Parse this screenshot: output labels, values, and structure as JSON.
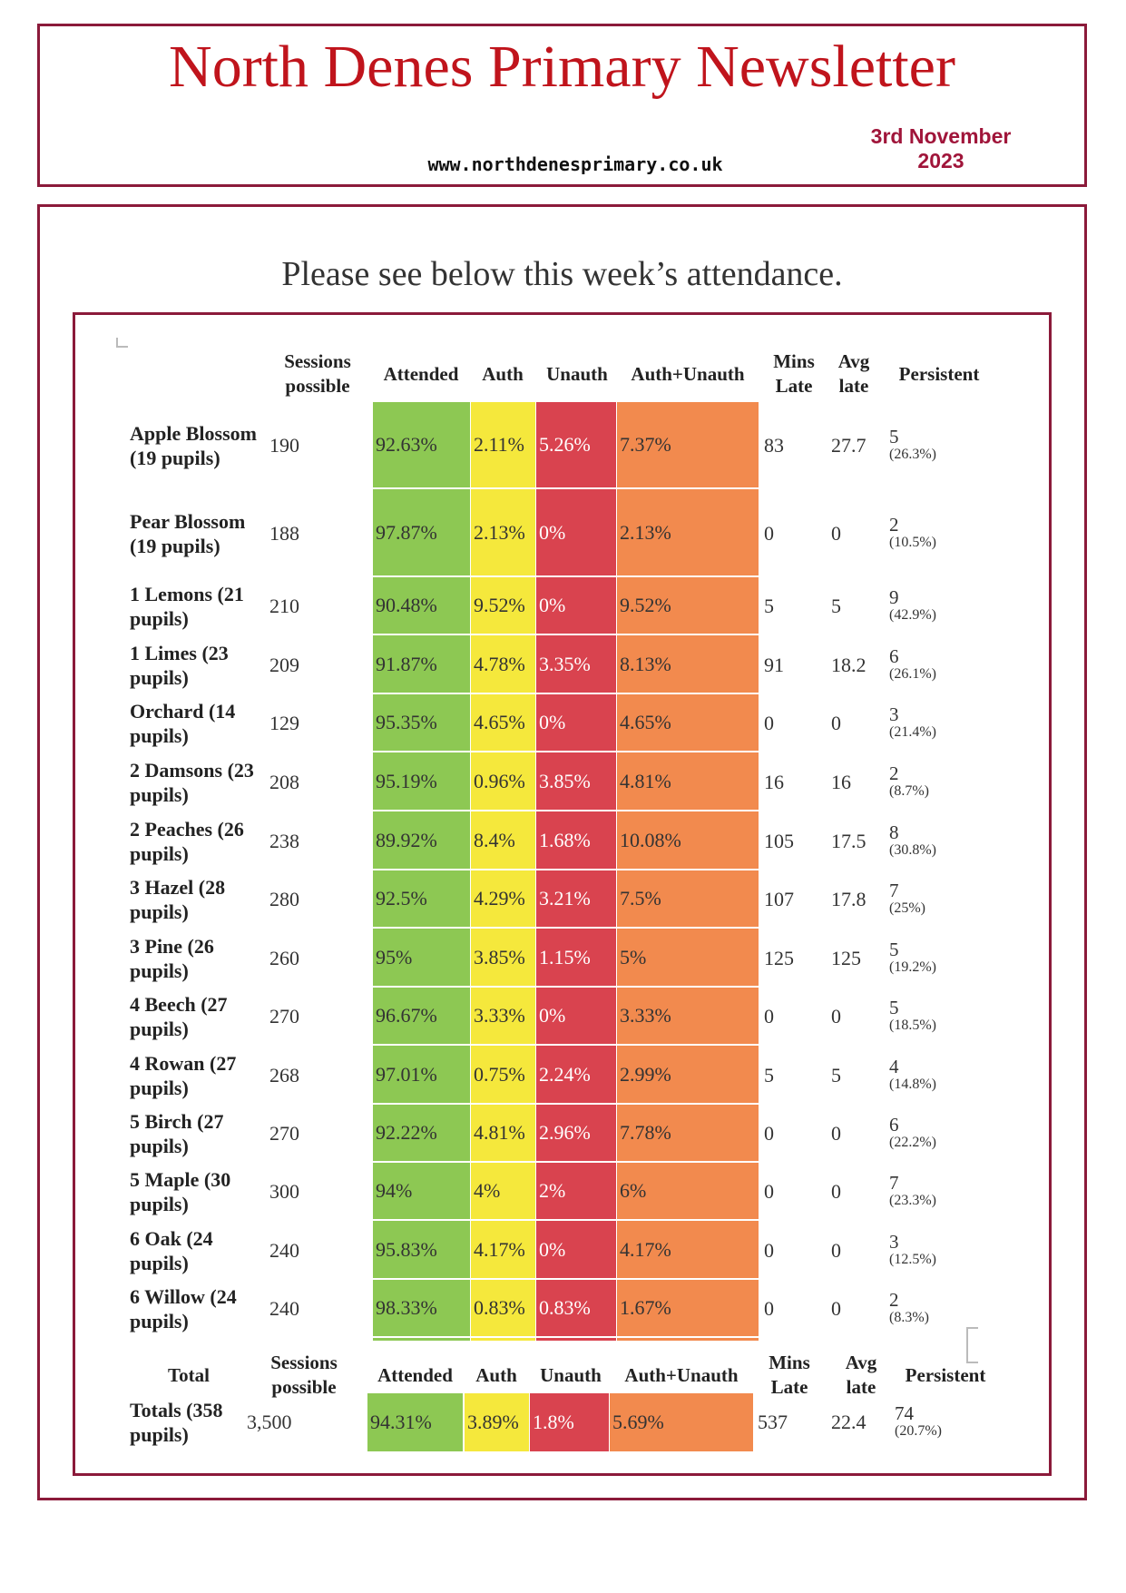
{
  "header": {
    "title": "North Denes Primary Newsletter",
    "website": "www.northdenesprimary.co.uk",
    "date_line1": "3rd November",
    "date_line2": "2023"
  },
  "intro": "Please see below this week’s attendance.",
  "colors": {
    "border": "#8b1a3a",
    "attended": "#8dc853",
    "auth": "#f5e83c",
    "unauth": "#d9434f",
    "auth_unauth": "#f28a4e"
  },
  "table": {
    "columns": [
      "Sessions possible",
      "Attended",
      "Auth",
      "Unauth",
      "Auth+Unauth",
      "Mins Late",
      "Avg late",
      "Persistent"
    ],
    "rows": [
      {
        "cls": "Apple Blossom (19 pupils)",
        "sessions": "190",
        "attended": "92.63%",
        "auth": "2.11%",
        "unauth": "5.26%",
        "au": "7.37%",
        "mins": "83",
        "avg": "27.7",
        "pn": "5",
        "pp": "(26.3%)"
      },
      {
        "cls": "Pear Blossom (19 pupils)",
        "sessions": "188",
        "attended": "97.87%",
        "auth": "2.13%",
        "unauth": "0%",
        "au": "2.13%",
        "mins": "0",
        "avg": "0",
        "pn": "2",
        "pp": "(10.5%)"
      },
      {
        "cls": "1 Lemons (21 pupils)",
        "sessions": "210",
        "attended": "90.48%",
        "auth": "9.52%",
        "unauth": "0%",
        "au": "9.52%",
        "mins": "5",
        "avg": "5",
        "pn": "9",
        "pp": "(42.9%)"
      },
      {
        "cls": "1 Limes (23 pupils)",
        "sessions": "209",
        "attended": "91.87%",
        "auth": "4.78%",
        "unauth": "3.35%",
        "au": "8.13%",
        "mins": "91",
        "avg": "18.2",
        "pn": "6",
        "pp": "(26.1%)"
      },
      {
        "cls": "Orchard (14 pupils)",
        "sessions": "129",
        "attended": "95.35%",
        "auth": "4.65%",
        "unauth": "0%",
        "au": "4.65%",
        "mins": "0",
        "avg": "0",
        "pn": "3",
        "pp": "(21.4%)"
      },
      {
        "cls": "2 Damsons (23 pupils)",
        "sessions": "208",
        "attended": "95.19%",
        "auth": "0.96%",
        "unauth": "3.85%",
        "au": "4.81%",
        "mins": "16",
        "avg": "16",
        "pn": "2",
        "pp": "(8.7%)"
      },
      {
        "cls": "2 Peaches (26 pupils)",
        "sessions": "238",
        "attended": "89.92%",
        "auth": "8.4%",
        "unauth": "1.68%",
        "au": "10.08%",
        "mins": "105",
        "avg": "17.5",
        "pn": "8",
        "pp": "(30.8%)"
      },
      {
        "cls": "3 Hazel (28 pupils)",
        "sessions": "280",
        "attended": "92.5%",
        "auth": "4.29%",
        "unauth": "3.21%",
        "au": "7.5%",
        "mins": "107",
        "avg": "17.8",
        "pn": "7",
        "pp": "(25%)"
      },
      {
        "cls": "3 Pine (26 pupils)",
        "sessions": "260",
        "attended": "95%",
        "auth": "3.85%",
        "unauth": "1.15%",
        "au": "5%",
        "mins": "125",
        "avg": "125",
        "pn": "5",
        "pp": "(19.2%)"
      },
      {
        "cls": "4 Beech (27 pupils)",
        "sessions": "270",
        "attended": "96.67%",
        "auth": "3.33%",
        "unauth": "0%",
        "au": "3.33%",
        "mins": "0",
        "avg": "0",
        "pn": "5",
        "pp": "(18.5%)"
      },
      {
        "cls": "4 Rowan (27 pupils)",
        "sessions": "268",
        "attended": "97.01%",
        "auth": "0.75%",
        "unauth": "2.24%",
        "au": "2.99%",
        "mins": "5",
        "avg": "5",
        "pn": "4",
        "pp": "(14.8%)"
      },
      {
        "cls": "5 Birch (27 pupils)",
        "sessions": "270",
        "attended": "92.22%",
        "auth": "4.81%",
        "unauth": "2.96%",
        "au": "7.78%",
        "mins": "0",
        "avg": "0",
        "pn": "6",
        "pp": "(22.2%)"
      },
      {
        "cls": "5 Maple (30 pupils)",
        "sessions": "300",
        "attended": "94%",
        "auth": "4%",
        "unauth": "2%",
        "au": "6%",
        "mins": "0",
        "avg": "0",
        "pn": "7",
        "pp": "(23.3%)"
      },
      {
        "cls": "6 Oak (24 pupils)",
        "sessions": "240",
        "attended": "95.83%",
        "auth": "4.17%",
        "unauth": "0%",
        "au": "4.17%",
        "mins": "0",
        "avg": "0",
        "pn": "3",
        "pp": "(12.5%)"
      },
      {
        "cls": "6 Willow (24 pupils)",
        "sessions": "240",
        "attended": "98.33%",
        "auth": "0.83%",
        "unauth": "0.83%",
        "au": "1.67%",
        "mins": "0",
        "avg": "0",
        "pn": "2",
        "pp": "(8.3%)"
      }
    ]
  },
  "totals": {
    "label": "Total",
    "columns": [
      "Sessions possible",
      "Attended",
      "Auth",
      "Unauth",
      "Auth+Unauth",
      "Mins Late",
      "Avg late",
      "Persistent"
    ],
    "row": {
      "cls": "Totals (358 pupils)",
      "sessions": "3,500",
      "attended": "94.31%",
      "auth": "3.89%",
      "unauth": "1.8%",
      "au": "5.69%",
      "mins": "537",
      "avg": "22.4",
      "pn": "74",
      "pp": "(20.7%)"
    }
  }
}
